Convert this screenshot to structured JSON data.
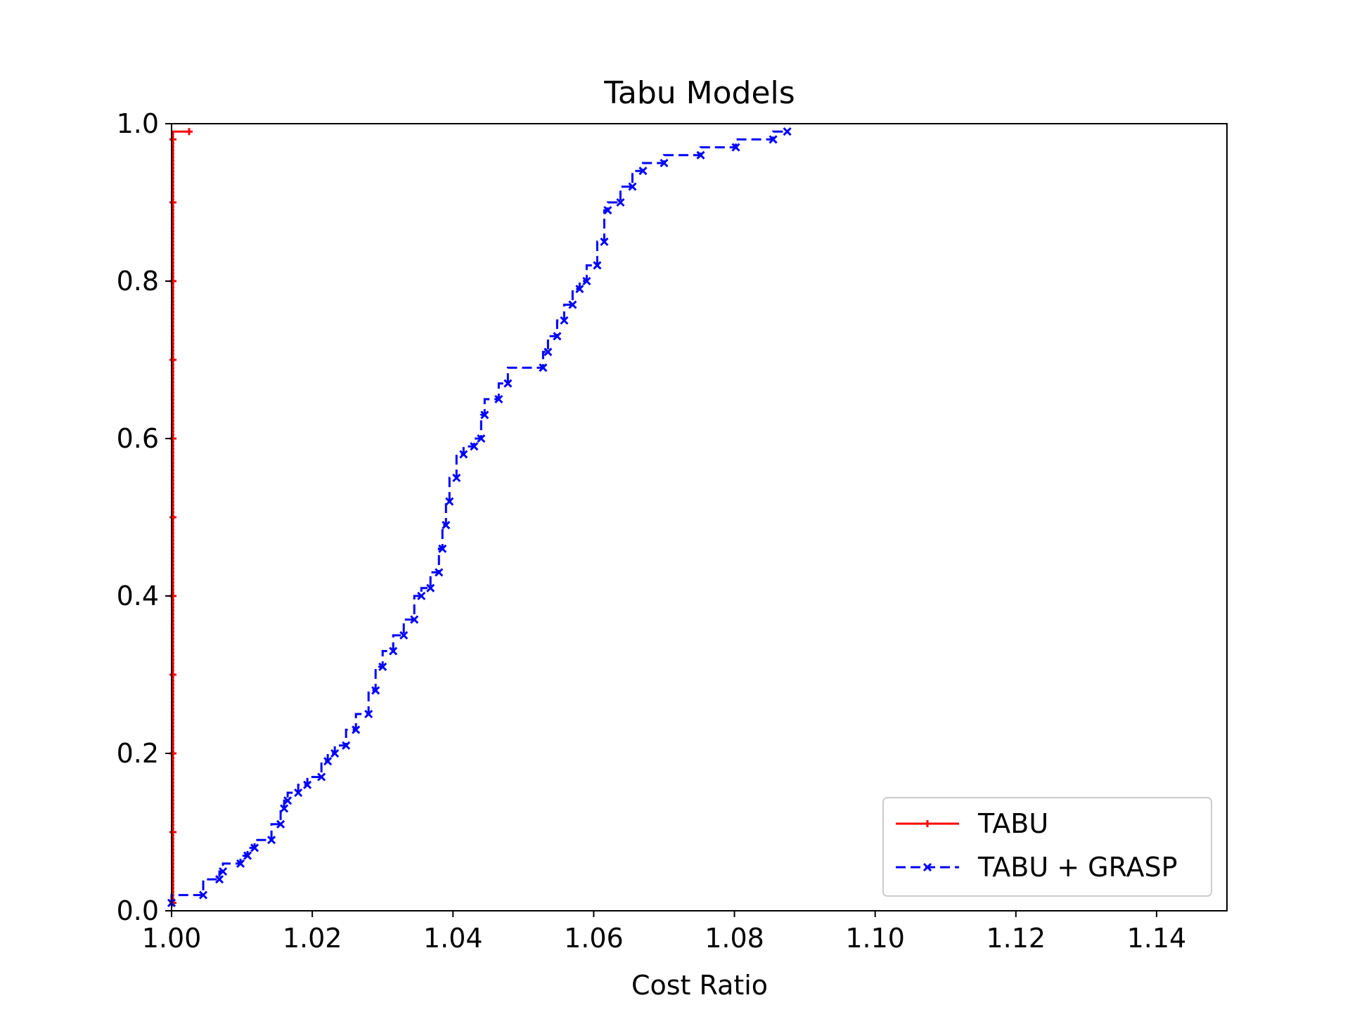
{
  "chart_data": {
    "type": "line",
    "title": "Tabu Models",
    "xlabel": "Cost Ratio",
    "ylabel": "",
    "xlim": [
      1.0,
      1.15
    ],
    "ylim": [
      0.0,
      1.0
    ],
    "xticks": [
      "1.00",
      "1.02",
      "1.04",
      "1.06",
      "1.08",
      "1.10",
      "1.12",
      "1.14"
    ],
    "yticks": [
      "0.0",
      "0.2",
      "0.4",
      "0.6",
      "0.8",
      "1.0"
    ],
    "legend_position": "lower-right",
    "grid": false,
    "series": [
      {
        "name": "TABU",
        "color": "#ff0000",
        "linestyle": "solid",
        "marker": "plus",
        "x": [
          1.0002,
          1.0002,
          1.0002,
          1.0002,
          1.0002,
          1.0002,
          1.0002,
          1.0002,
          1.0002,
          1.0002,
          1.0002,
          1.0025
        ],
        "y": [
          0.01,
          0.1,
          0.2,
          0.3,
          0.4,
          0.5,
          0.6,
          0.7,
          0.8,
          0.9,
          0.98,
          0.99
        ]
      },
      {
        "name": "TABU + GRASP",
        "color": "#0000ff",
        "linestyle": "dashed",
        "marker": "x",
        "x": [
          1.0,
          1.0045,
          1.0068,
          1.0073,
          1.0098,
          1.0108,
          1.0118,
          1.0142,
          1.0155,
          1.016,
          1.0165,
          1.018,
          1.0193,
          1.0213,
          1.0222,
          1.0232,
          1.0248,
          1.0262,
          1.028,
          1.029,
          1.03,
          1.0315,
          1.033,
          1.0345,
          1.0355,
          1.0368,
          1.038,
          1.0385,
          1.039,
          1.0395,
          1.0405,
          1.0415,
          1.043,
          1.044,
          1.0445,
          1.0465,
          1.0478,
          1.0528,
          1.0535,
          1.0548,
          1.0558,
          1.057,
          1.058,
          1.059,
          1.0605,
          1.0615,
          1.062,
          1.0638,
          1.0655,
          1.067,
          1.07,
          1.0752,
          1.0802,
          1.0855,
          1.0875
        ],
        "y": [
          0.01,
          0.02,
          0.04,
          0.05,
          0.06,
          0.07,
          0.08,
          0.09,
          0.11,
          0.13,
          0.14,
          0.15,
          0.16,
          0.17,
          0.19,
          0.2,
          0.21,
          0.23,
          0.25,
          0.28,
          0.31,
          0.33,
          0.35,
          0.37,
          0.4,
          0.41,
          0.43,
          0.46,
          0.49,
          0.52,
          0.55,
          0.58,
          0.59,
          0.6,
          0.63,
          0.65,
          0.67,
          0.69,
          0.71,
          0.73,
          0.75,
          0.77,
          0.79,
          0.8,
          0.82,
          0.85,
          0.89,
          0.9,
          0.92,
          0.94,
          0.95,
          0.96,
          0.97,
          0.98,
          0.99
        ]
      }
    ]
  }
}
